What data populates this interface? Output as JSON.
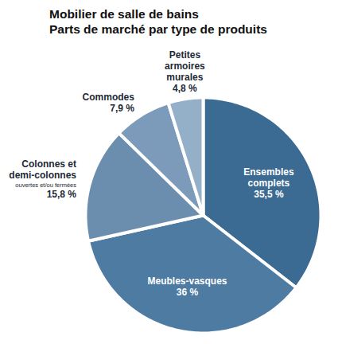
{
  "chart_data": {
    "type": "pie",
    "title": "Mobilier de salle de bains",
    "subtitle": "Parts de marché par type de produits",
    "categories": [
      "Ensembles complets",
      "Meubles-vasques",
      "Colonnes et demi-colonnes",
      "Commodes",
      "Petites armoires murales"
    ],
    "values": [
      35.5,
      36,
      15.8,
      7.9,
      4.8
    ],
    "value_labels": [
      "35,5 %",
      "36 %",
      "15,8 %",
      "7,9 %",
      "4,8 %"
    ],
    "colors": [
      "#3b6a92",
      "#4e7ba2",
      "#6b8eaf",
      "#7c9bba",
      "#94afc8"
    ],
    "data_labels": true,
    "annotations": [
      {
        "category": "Colonnes et demi-colonnes",
        "text": "ouvertes et/ou fermées"
      }
    ]
  }
}
